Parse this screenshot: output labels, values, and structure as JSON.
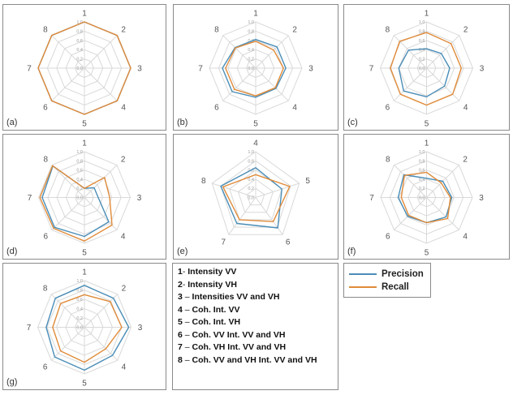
{
  "style": {
    "precision_color": "#4a8db7",
    "recall_color": "#e08b3a",
    "grid_color": "#d9d9d9"
  },
  "legend": {
    "items": [
      {
        "num": "1",
        "sep": "- ",
        "text": "Intensity VV"
      },
      {
        "num": "2",
        "sep": "- ",
        "text": "Intensity VH"
      },
      {
        "num": "3",
        "sep": " – ",
        "text": "Intensities VV and VH"
      },
      {
        "num": "4",
        "sep": " – ",
        "text": "Coh. Int. VV"
      },
      {
        "num": "5",
        "sep": " – ",
        "text": "Coh. Int. VH"
      },
      {
        "num": "6",
        "sep": " – ",
        "text": "Coh. VV Int. VV and VH"
      },
      {
        "num": "7",
        "sep": " – ",
        "text": "Coh. VH Int. VV and VH"
      },
      {
        "num": "8",
        "sep": " – ",
        "text": "Coh. VV and VH Int. VV and VH"
      }
    ],
    "series": [
      "Precision",
      "Recall"
    ]
  },
  "chart_data": [
    {
      "panel": "(a)",
      "type": "radar",
      "axes": [
        "1",
        "2",
        "3",
        "4",
        "5",
        "6",
        "7",
        "8"
      ],
      "ticks": [
        "0,0",
        "0,2",
        "0,4",
        "0,6",
        "0,8",
        "1,0"
      ],
      "rmax": 1.0,
      "series": [
        {
          "name": "Precision",
          "values": [
            1.0,
            1.0,
            1.0,
            1.0,
            1.0,
            1.0,
            1.0,
            1.0
          ]
        },
        {
          "name": "Recall",
          "values": [
            1.0,
            1.0,
            1.0,
            1.0,
            1.0,
            1.0,
            1.0,
            1.0
          ]
        }
      ]
    },
    {
      "panel": "(b)",
      "type": "radar",
      "axes": [
        "1",
        "2",
        "3",
        "4",
        "5",
        "6",
        "7",
        "8"
      ],
      "ticks": [
        "0,0",
        "0,2",
        "0,4",
        "0,6",
        "0,8",
        "1,0"
      ],
      "rmax": 1.0,
      "series": [
        {
          "name": "Precision",
          "values": [
            0.62,
            0.65,
            0.65,
            0.62,
            0.63,
            0.72,
            0.72,
            0.63
          ]
        },
        {
          "name": "Recall",
          "values": [
            0.58,
            0.55,
            0.6,
            0.6,
            0.6,
            0.65,
            0.65,
            0.62
          ]
        }
      ]
    },
    {
      "panel": "(c)",
      "type": "radar",
      "axes": [
        "1",
        "2",
        "3",
        "4",
        "5",
        "6",
        "7",
        "8"
      ],
      "ticks": [
        "0,0",
        "0,2",
        "0,4",
        "0,6",
        "0,8",
        "1,0"
      ],
      "rmax": 1.0,
      "series": [
        {
          "name": "Precision",
          "values": [
            0.42,
            0.45,
            0.5,
            0.55,
            0.62,
            0.7,
            0.6,
            0.55
          ]
        },
        {
          "name": "Recall",
          "values": [
            0.77,
            0.75,
            0.75,
            0.8,
            0.8,
            0.8,
            0.78,
            0.82
          ]
        }
      ]
    },
    {
      "panel": "(d)",
      "type": "radar",
      "axes": [
        "1",
        "2",
        "3",
        "4",
        "5",
        "6",
        "7",
        "8"
      ],
      "ticks": [
        "0,0",
        "0,2",
        "0,4",
        "0,6",
        "0,8",
        "1,0"
      ],
      "rmax": 1.0,
      "series": [
        {
          "name": "Precision",
          "values": [
            0.2,
            0.3,
            0.3,
            0.75,
            0.85,
            0.92,
            0.92,
            0.97
          ]
        },
        {
          "name": "Recall",
          "values": [
            0.2,
            0.62,
            0.55,
            0.85,
            0.95,
            0.95,
            0.97,
            0.98
          ]
        }
      ]
    },
    {
      "panel": "(e)",
      "type": "radar",
      "axes": [
        "4",
        "5",
        "6",
        "7",
        "8"
      ],
      "ticks": [
        "0,0",
        "0,2",
        "0,4",
        "0,6",
        "0,8",
        "1,0"
      ],
      "rmax": 1.0,
      "series": [
        {
          "name": "Precision",
          "values": [
            0.65,
            0.6,
            0.82,
            0.7,
            0.8
          ]
        },
        {
          "name": "Recall",
          "values": [
            0.5,
            0.78,
            0.65,
            0.6,
            0.75
          ]
        }
      ]
    },
    {
      "panel": "(f)",
      "type": "radar",
      "axes": [
        "1",
        "2",
        "3",
        "4",
        "5",
        "6",
        "7",
        "8"
      ],
      "ticks": [
        "0,0",
        "0,2",
        "0,4",
        "0,6",
        "0,8",
        "1,0"
      ],
      "rmax": 1.0,
      "series": [
        {
          "name": "Precision",
          "values": [
            0.42,
            0.5,
            0.55,
            0.6,
            0.55,
            0.58,
            0.62,
            0.7
          ]
        },
        {
          "name": "Recall",
          "values": [
            0.55,
            0.45,
            0.52,
            0.65,
            0.55,
            0.55,
            0.55,
            0.68
          ]
        }
      ]
    },
    {
      "panel": "(g)",
      "type": "radar",
      "axes": [
        "1",
        "2",
        "3",
        "4",
        "5",
        "6",
        "7",
        "8"
      ],
      "ticks": [
        "0,0",
        "0,2",
        "0,4",
        "0,6",
        "0,8",
        "1,0"
      ],
      "rmax": 1.0,
      "series": [
        {
          "name": "Precision",
          "values": [
            0.9,
            0.88,
            0.95,
            0.85,
            0.92,
            0.9,
            0.82,
            0.88
          ]
        },
        {
          "name": "Recall",
          "values": [
            0.7,
            0.78,
            0.8,
            0.65,
            0.75,
            0.72,
            0.68,
            0.72
          ]
        }
      ]
    }
  ]
}
